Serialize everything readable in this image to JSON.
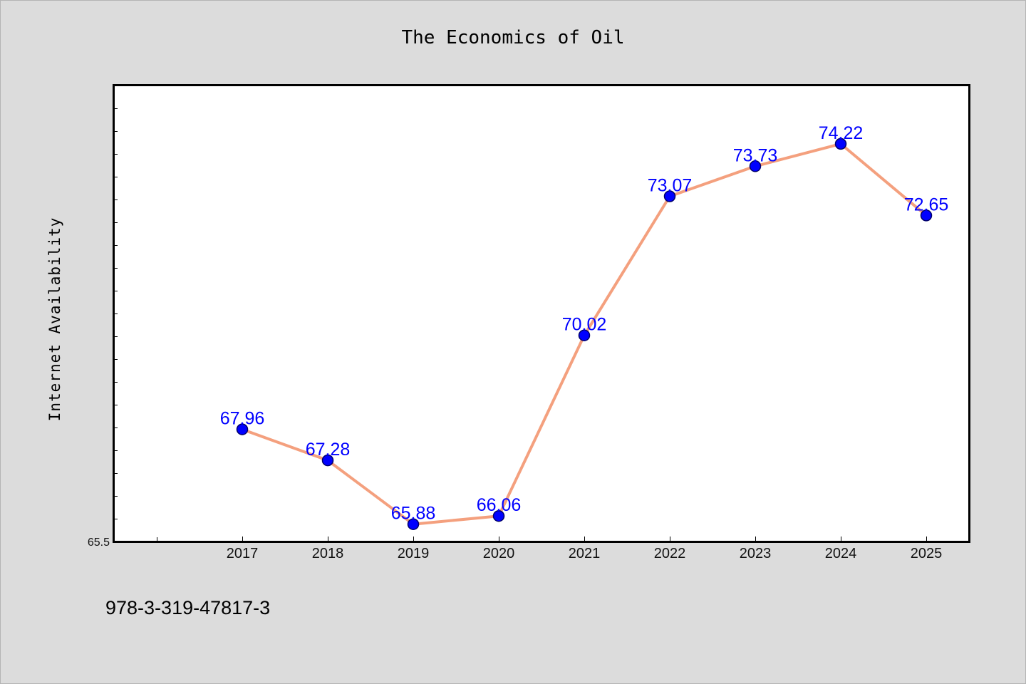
{
  "chart_data": {
    "type": "line",
    "title": "The Economics of Oil",
    "xlabel": "",
    "ylabel": "Internet Availability",
    "categories": [
      "2017",
      "2018",
      "2019",
      "2020",
      "2021",
      "2022",
      "2023",
      "2024",
      "2025"
    ],
    "series": [
      {
        "values": [
          67.96,
          67.28,
          65.88,
          66.06,
          70.02,
          73.07,
          73.73,
          74.22,
          72.65
        ],
        "labels": [
          "67.96",
          "67.28",
          "65.88",
          "66.06",
          "70.02",
          "73.07",
          "73.73",
          "74.22",
          "72.65"
        ],
        "line_color": "#f4a07e",
        "marker_color": "#0000ff"
      }
    ],
    "ylim": [
      65.5,
      75.5
    ],
    "ytick_labels": [
      "65.5"
    ],
    "label_color": "#0000ff",
    "grid": false,
    "legend": "none"
  },
  "footer": {
    "isbn": "978-3-319-47817-3"
  }
}
